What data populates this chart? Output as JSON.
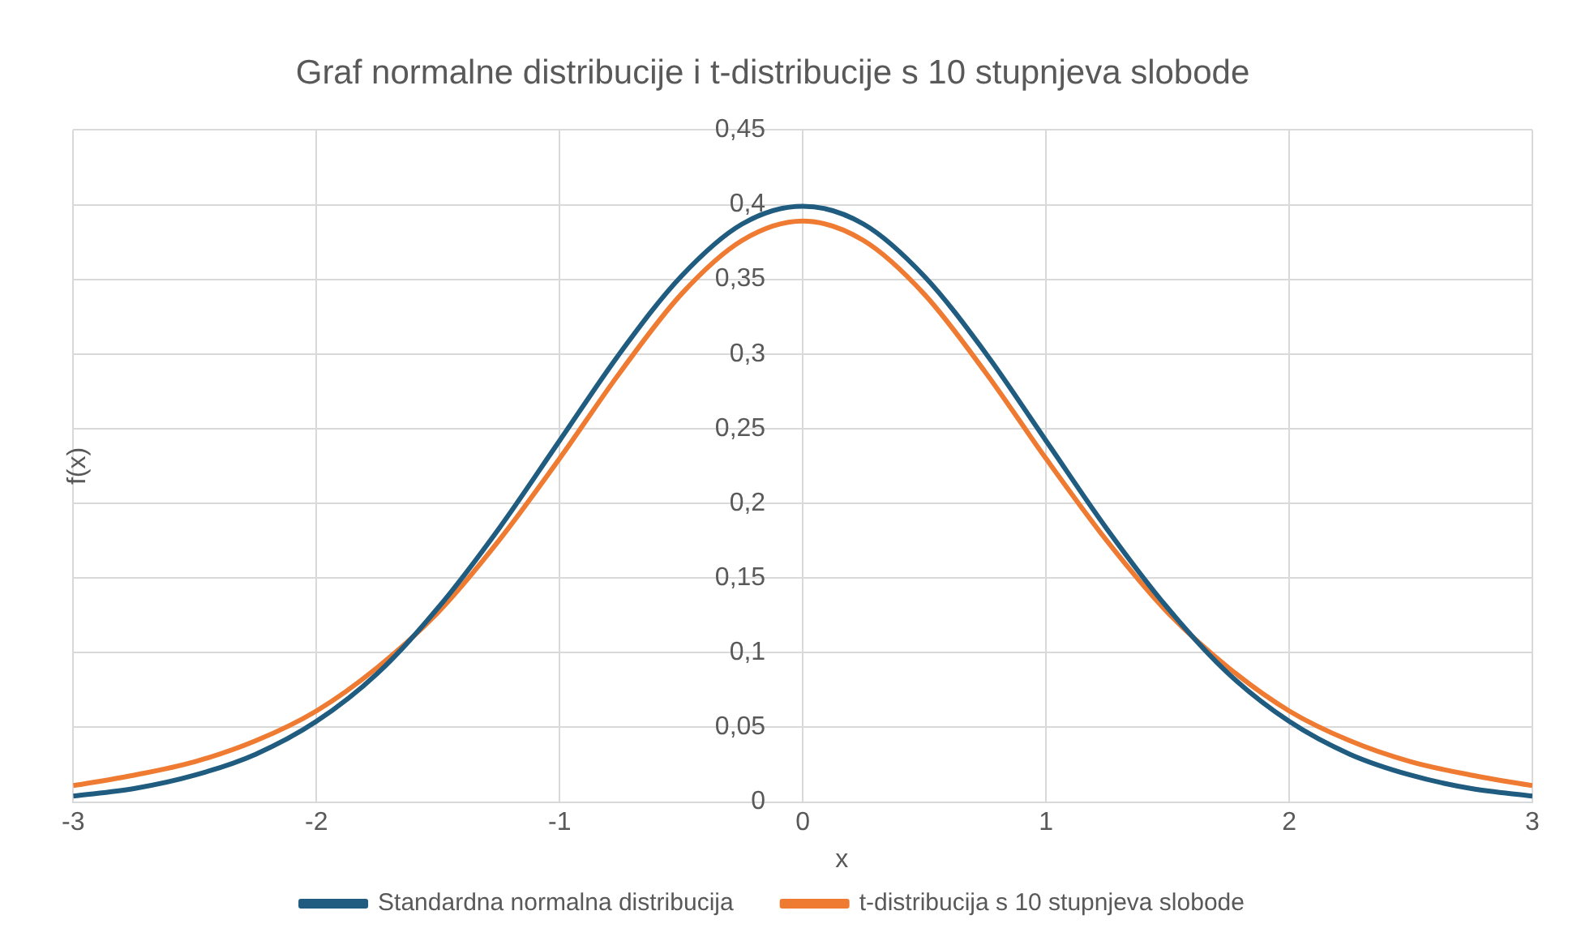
{
  "chart_data": {
    "type": "line",
    "title": "Graf normalne distribucije i t-distribucije s 10 stupnjeva slobode",
    "xlabel": "x",
    "ylabel": "f(x)",
    "x": [
      -3,
      -2.75,
      -2.5,
      -2.25,
      -2,
      -1.75,
      -1.5,
      -1.25,
      -1,
      -0.75,
      -0.5,
      -0.25,
      0,
      0.25,
      0.5,
      0.75,
      1,
      1.25,
      1.5,
      1.75,
      2,
      2.25,
      2.5,
      2.75,
      3
    ],
    "series": [
      {
        "name": "Standardna normalna distribucija",
        "color": "#1f5c80",
        "values": [
          0.004,
          0.009,
          0.018,
          0.032,
          0.054,
          0.086,
          0.13,
          0.183,
          0.242,
          0.301,
          0.352,
          0.387,
          0.399,
          0.387,
          0.352,
          0.301,
          0.242,
          0.183,
          0.13,
          0.086,
          0.054,
          0.032,
          0.018,
          0.009,
          0.004
        ]
      },
      {
        "name": "t-distribucija s 10 stupnjeva slobode",
        "color": "#ef7b32",
        "values": [
          0.011,
          0.018,
          0.027,
          0.041,
          0.061,
          0.09,
          0.127,
          0.175,
          0.23,
          0.288,
          0.34,
          0.376,
          0.389,
          0.376,
          0.34,
          0.288,
          0.23,
          0.175,
          0.127,
          0.09,
          0.061,
          0.041,
          0.027,
          0.018,
          0.011
        ]
      }
    ],
    "xlim": [
      -3,
      3
    ],
    "xticks": [
      -3,
      -2,
      -1,
      0,
      1,
      2,
      3
    ],
    "ylim": [
      0,
      0.45
    ],
    "yticks": [
      {
        "value": 0,
        "label": "0"
      },
      {
        "value": 0.05,
        "label": "0,05"
      },
      {
        "value": 0.1,
        "label": "0,1"
      },
      {
        "value": 0.15,
        "label": "0,15"
      },
      {
        "value": 0.2,
        "label": "0,2"
      },
      {
        "value": 0.25,
        "label": "0,25"
      },
      {
        "value": 0.3,
        "label": "0,3"
      },
      {
        "value": 0.35,
        "label": "0,35"
      },
      {
        "value": 0.4,
        "label": "0,4"
      },
      {
        "value": 0.45,
        "label": "0,45"
      }
    ],
    "grid": true,
    "legend": "bottom",
    "marker": "none",
    "line_style": "solid"
  }
}
